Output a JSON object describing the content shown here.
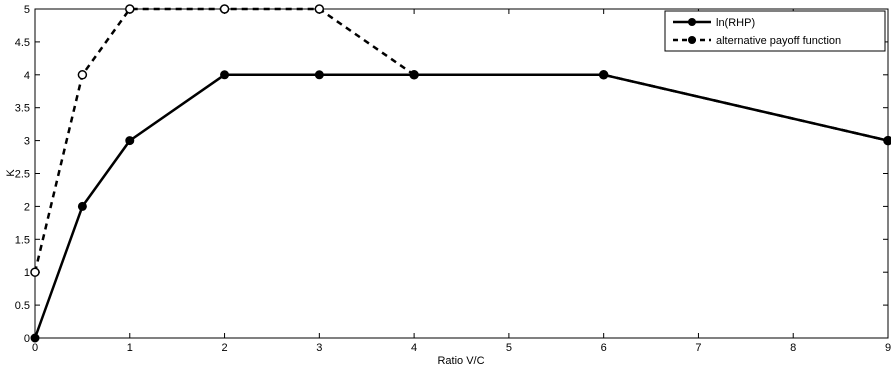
{
  "chart_data": {
    "type": "line",
    "title": "",
    "xlabel": "Ratio V/C",
    "ylabel": "K",
    "xlim": [
      0,
      9
    ],
    "ylim": [
      0,
      5
    ],
    "xticks": [
      0,
      1,
      2,
      3,
      4,
      5,
      6,
      7,
      8,
      9
    ],
    "xtick_labels": [
      "0",
      "1",
      "2",
      "3",
      "4",
      "5",
      "6",
      "7",
      "8",
      "9"
    ],
    "yticks": [
      0,
      0.5,
      1,
      1.5,
      2,
      2.5,
      3,
      3.5,
      4,
      4.5,
      5
    ],
    "ytick_labels": [
      "0",
      "0.5",
      "1",
      "1.5",
      "2",
      "2.5",
      "3",
      "3.5",
      "4",
      "4.5",
      "5"
    ],
    "grid": false,
    "legend_position": "top-right",
    "series": [
      {
        "name": "ln(RHP)",
        "style": "solid",
        "color": "#000000",
        "x": [
          0,
          0.5,
          1,
          2,
          3,
          4,
          6,
          9
        ],
        "y": [
          0,
          2,
          3,
          4,
          4,
          4,
          4,
          3
        ]
      },
      {
        "name": "alternative payoff function",
        "style": "dashed",
        "color": "#000000",
        "x": [
          0,
          0.5,
          1,
          2,
          3,
          4,
          6,
          9
        ],
        "y": [
          1,
          4,
          5,
          5,
          5,
          4,
          4,
          3
        ]
      }
    ]
  }
}
